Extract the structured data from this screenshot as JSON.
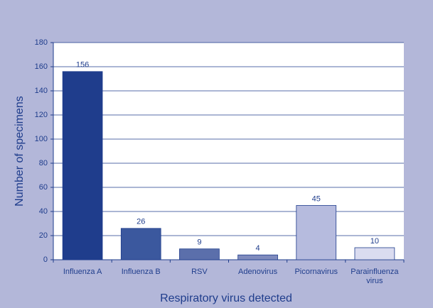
{
  "chart_data": {
    "type": "bar",
    "categories": [
      "Influenza A",
      "Influenza B",
      "RSV",
      "Adenovirus",
      "Picornavirus",
      "Parainfluenza virus"
    ],
    "values": [
      156,
      26,
      9,
      4,
      45,
      10
    ],
    "colors": [
      "#1f3d8c",
      "#3b589e",
      "#5b6fab",
      "#7f8bbd",
      "#b6bbde",
      "#dadcf0"
    ],
    "ylim": [
      0,
      180
    ],
    "yticks": [
      0,
      20,
      40,
      60,
      80,
      100,
      120,
      140,
      160,
      180
    ],
    "grid": true,
    "xlabel": "Respiratory virus detected",
    "ylabel": "Number of specimens"
  }
}
